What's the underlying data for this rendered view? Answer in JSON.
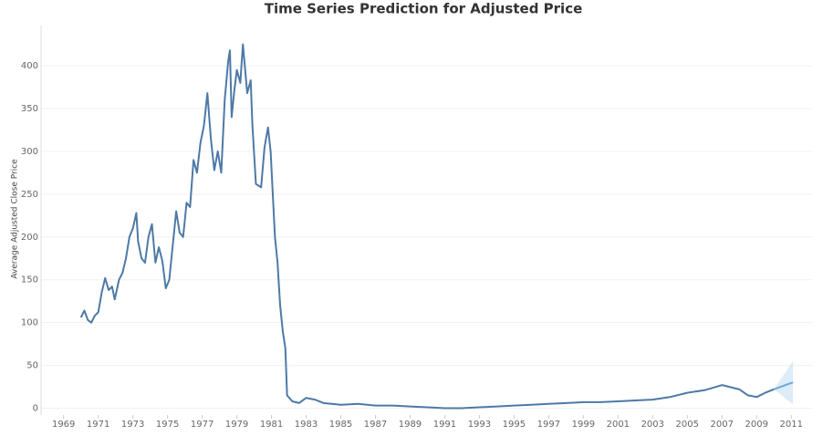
{
  "chart_data": {
    "type": "line",
    "title": "Time Series Prediction for Adjusted Price",
    "y_label": "Average Adjusted Close Price",
    "xlim": [
      1967.7,
      2012.2
    ],
    "xticks": [
      1969,
      1971,
      1973,
      1975,
      1977,
      1979,
      1981,
      1983,
      1985,
      1987,
      1989,
      1991,
      1993,
      1995,
      1997,
      1999,
      2001,
      2003,
      2005,
      2007,
      2009,
      2011
    ],
    "ylim": [
      -8,
      447
    ],
    "yticks": [
      0,
      50,
      100,
      150,
      200,
      250,
      300,
      350,
      400
    ],
    "grid": true,
    "series": [
      {
        "color": "#4e79a7",
        "x": [
          1970.0,
          1970.2,
          1970.4,
          1970.6,
          1970.8,
          1971.0,
          1971.2,
          1971.4,
          1971.6,
          1971.8,
          1971.95,
          1972.2,
          1972.4,
          1972.6,
          1972.8,
          1973.0,
          1973.2,
          1973.3,
          1973.5,
          1973.7,
          1973.9,
          1974.1,
          1974.3,
          1974.5,
          1974.7,
          1974.9,
          1975.1,
          1975.3,
          1975.5,
          1975.7,
          1975.9,
          1976.1,
          1976.3,
          1976.5,
          1976.7,
          1976.9,
          1977.1,
          1977.3,
          1977.5,
          1977.7,
          1977.9,
          1978.1,
          1978.3,
          1978.5,
          1978.6,
          1978.7,
          1978.85,
          1979.0,
          1979.2,
          1979.35,
          1979.6,
          1979.8,
          1979.9,
          1980.1,
          1980.4,
          1980.6,
          1980.8,
          1980.95,
          1981.2,
          1981.35,
          1981.5,
          1981.65,
          1981.8,
          1981.9,
          1982.2,
          1982.6,
          1983.0,
          1983.5,
          1984.0,
          1985.0,
          1986.0,
          1987.0,
          1988.0,
          1989.0,
          1990.0,
          1991.0,
          1992.0,
          1993.0,
          1994.0,
          1995.0,
          1996.0,
          1997.0,
          1998.0,
          1999.0,
          2000.0,
          2001.0,
          2002.0,
          2003.0,
          2004.0,
          2005.0,
          2006.0,
          2007.0,
          2008.0,
          2008.5,
          2009.0,
          2009.5,
          2010.0
        ],
        "values": [
          106,
          114,
          103,
          100,
          108,
          112,
          135,
          152,
          138,
          142,
          127,
          150,
          158,
          175,
          200,
          210,
          228,
          195,
          175,
          170,
          200,
          215,
          170,
          188,
          172,
          140,
          150,
          190,
          230,
          205,
          200,
          240,
          235,
          290,
          275,
          310,
          330,
          368,
          315,
          278,
          300,
          275,
          360,
          405,
          418,
          340,
          370,
          395,
          380,
          425,
          368,
          383,
          330,
          262,
          258,
          305,
          328,
          300,
          200,
          170,
          120,
          90,
          70,
          15,
          8,
          6,
          12,
          10,
          6,
          4,
          5,
          3,
          3,
          2,
          1,
          0,
          0,
          1,
          2,
          3,
          4,
          5,
          6,
          7,
          7,
          8,
          9,
          10,
          13,
          18,
          21,
          27,
          22,
          15,
          13,
          18,
          22
        ]
      },
      {
        "color": "#9ac9eb",
        "x": [
          2010.0,
          2010.4,
          2010.8,
          2011.1
        ],
        "values": [
          22,
          25,
          28,
          30
        ],
        "upper": [
          22,
          34,
          46,
          55
        ],
        "lower": [
          22,
          16,
          9,
          5
        ]
      }
    ]
  }
}
